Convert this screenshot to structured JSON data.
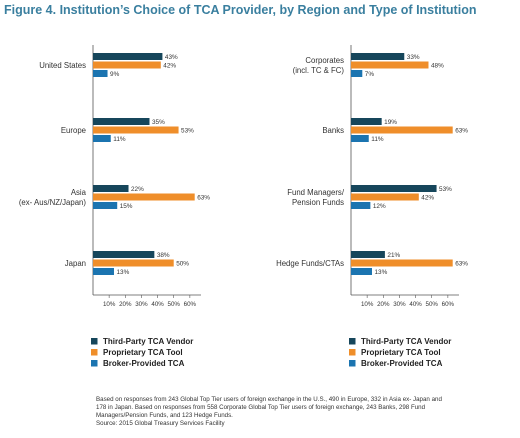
{
  "figure_title": "Figure 4. Institution’s Choice of TCA Provider, by Region and Type of Institution",
  "colors": {
    "third_party": "#16465b",
    "proprietary": "#ef8e2a",
    "broker": "#1b74b0",
    "axis": "#555555",
    "title": "#3a7f9f"
  },
  "chart_data": [
    {
      "type": "bar",
      "orientation": "horizontal",
      "title": "",
      "categories": [
        "United States",
        "Europe",
        "Asia\n(ex- Aus/NZ/Japan)",
        "Japan"
      ],
      "series": [
        {
          "name": "Third-Party TCA Vendor",
          "values": [
            43,
            35,
            22,
            38
          ]
        },
        {
          "name": "Proprietary TCA Tool",
          "values": [
            42,
            53,
            63,
            50
          ]
        },
        {
          "name": "Broker-Provided TCA",
          "values": [
            9,
            11,
            15,
            13
          ]
        }
      ],
      "xlim": [
        0,
        70
      ],
      "xticks": [
        10,
        20,
        30,
        40,
        50,
        60
      ],
      "xtick_labels": [
        "10%",
        "20%",
        "30%",
        "40%",
        "50%",
        "60%"
      ],
      "value_format": "percent",
      "grid": false,
      "legend": "bottom"
    },
    {
      "type": "bar",
      "orientation": "horizontal",
      "title": "",
      "categories": [
        "Corporates\n(incl. TC & FC)",
        "Banks",
        "Fund Managers/\nPension Funds",
        "Hedge Funds/CTAs"
      ],
      "series": [
        {
          "name": "Third-Party TCA Vendor",
          "values": [
            33,
            19,
            53,
            21
          ]
        },
        {
          "name": "Proprietary TCA Tool",
          "values": [
            48,
            63,
            42,
            63
          ]
        },
        {
          "name": "Broker-Provided TCA",
          "values": [
            7,
            11,
            12,
            13
          ]
        }
      ],
      "xlim": [
        0,
        70
      ],
      "xticks": [
        10,
        20,
        30,
        40,
        50,
        60
      ],
      "xtick_labels": [
        "10%",
        "20%",
        "30%",
        "40%",
        "50%",
        "60%"
      ],
      "value_format": "percent",
      "grid": false,
      "legend": "bottom"
    }
  ],
  "footnotes": [
    "Based on responses from 243  Global Top Tier users of foreign exchange in the U.S., 490 in Europe, 332 in Asia ex- Japan and",
    "178 in Japan. Based on responses from 558 Corporate Global Top Tier users of foreign exchange, 243 Banks, 298 Fund",
    "Managers/Pension Funds, and 123 Hedge Funds.",
    "Source: 2015 Global Treasury Services Facility"
  ]
}
